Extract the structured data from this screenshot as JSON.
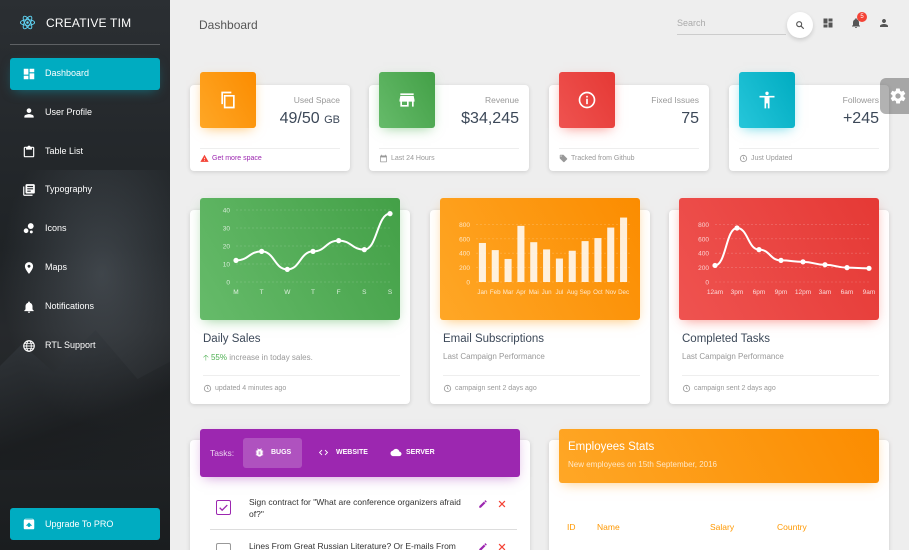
{
  "sidebar": {
    "brand": "CREATIVE TIM",
    "items": [
      {
        "label": "Dashboard",
        "icon": "dashboard-icon",
        "active": true
      },
      {
        "label": "User Profile",
        "icon": "person-icon"
      },
      {
        "label": "Table List",
        "icon": "clipboard-icon"
      },
      {
        "label": "Typography",
        "icon": "library-books-icon"
      },
      {
        "label": "Icons",
        "icon": "bubble-chart-icon"
      },
      {
        "label": "Maps",
        "icon": "location-pin-icon"
      },
      {
        "label": "Notifications",
        "icon": "bell-icon"
      },
      {
        "label": "RTL Support",
        "icon": "language-icon"
      }
    ],
    "upgrade_label": "Upgrade To PRO"
  },
  "topbar": {
    "title": "Dashboard",
    "search_placeholder": "Search",
    "notification_count": "5"
  },
  "stats": [
    {
      "category": "Used Space",
      "value": "49/50",
      "unit": "GB",
      "footer": "Get more space",
      "footer_icon": "warning-icon",
      "color": "#ff9800"
    },
    {
      "category": "Revenue",
      "value": "$34,245",
      "footer": "Last 24 Hours",
      "footer_icon": "calendar-icon",
      "color": "#4caf50"
    },
    {
      "category": "Fixed Issues",
      "value": "75",
      "footer": "Tracked from Github",
      "footer_icon": "tag-icon",
      "color": "#f44336"
    },
    {
      "category": "Followers",
      "value": "+245",
      "footer": "Just Updated",
      "footer_icon": "update-icon",
      "color": "#26c6da"
    }
  ],
  "charts": [
    {
      "title": "Daily Sales",
      "sub_pct": "55%",
      "sub_text": " increase in today sales.",
      "footer": "updated 4 minutes ago",
      "color": "#4caf50"
    },
    {
      "title": "Email Subscriptions",
      "sub_text": "Last Campaign Performance",
      "footer": "campaign sent 2 days ago",
      "color": "#ff9800"
    },
    {
      "title": "Completed Tasks",
      "sub_text": "Last Campaign Performance",
      "footer": "campaign sent 2 days ago",
      "color": "#f44336"
    }
  ],
  "chart_data": [
    {
      "type": "line",
      "categories": [
        "M",
        "T",
        "W",
        "T",
        "F",
        "S",
        "S"
      ],
      "values": [
        12,
        17,
        7,
        17,
        23,
        18,
        38
      ],
      "yticks": [
        "40",
        "30",
        "20",
        "10",
        "0"
      ],
      "ylim": [
        0,
        40
      ]
    },
    {
      "type": "bar",
      "categories": [
        "Jan",
        "Feb",
        "Mar",
        "Apr",
        "Mai",
        "Jun",
        "Jul",
        "Aug",
        "Sep",
        "Oct",
        "Nov",
        "Dec"
      ],
      "values": [
        542,
        443,
        320,
        780,
        553,
        453,
        326,
        434,
        568,
        610,
        756,
        895
      ],
      "yticks": [
        "800",
        "600",
        "400",
        "200",
        "0"
      ],
      "ylim": [
        0,
        1000
      ]
    },
    {
      "type": "line",
      "categories": [
        "12am",
        "3pm",
        "6pm",
        "9pm",
        "12pm",
        "3am",
        "6am",
        "9am"
      ],
      "values": [
        230,
        750,
        450,
        300,
        280,
        240,
        200,
        190
      ],
      "yticks": [
        "800",
        "600",
        "400",
        "200",
        "0"
      ],
      "ylim": [
        0,
        1000
      ]
    }
  ],
  "tasks": {
    "label": "Tasks:",
    "tabs": [
      "BUGS",
      "WEBSITE",
      "SERVER"
    ],
    "items": [
      {
        "text": "Sign contract for \"What are conference organizers afraid of?\"",
        "checked": true
      },
      {
        "text": "Lines From Great Russian Literature? Or E-mails From",
        "checked": false
      }
    ]
  },
  "employees": {
    "title": "Employees Stats",
    "subtitle": "New employees on 15th September, 2016",
    "columns": [
      "ID",
      "Name",
      "Salary",
      "Country"
    ]
  }
}
